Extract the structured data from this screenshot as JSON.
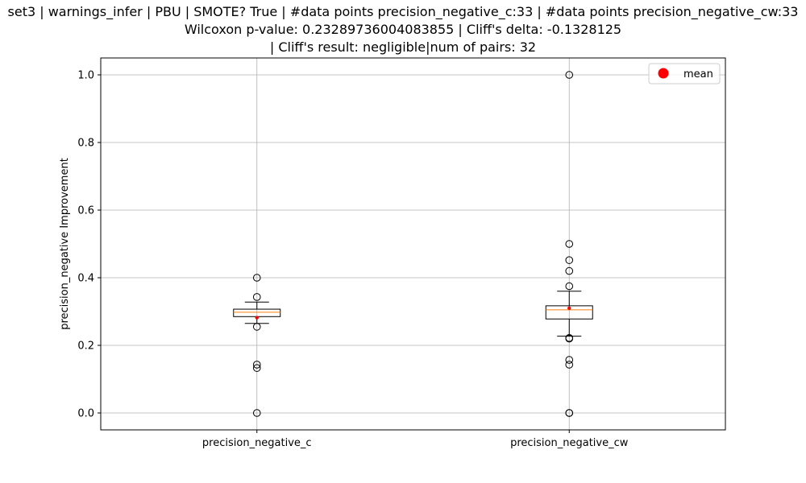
{
  "chart_data": {
    "type": "box",
    "title_lines": [
      "set3 | warnings_infer | PBU | SMOTE? True | #data points precision_negative_c:33 | #data points precision_negative_cw:33",
      "Wilcoxon p-value: 0.23289736004083855 | Cliff's delta: -0.1328125",
      " | Cliff's result: negligible|num of pairs: 32"
    ],
    "xlabel": "",
    "ylabel": "precision_negative Improvement",
    "ylim": [
      -0.05,
      1.05
    ],
    "yticks": [
      0.0,
      0.2,
      0.4,
      0.6,
      0.8,
      1.0
    ],
    "ytick_labels": [
      "0.0",
      "0.2",
      "0.4",
      "0.6",
      "0.8",
      "1.0"
    ],
    "grid": true,
    "legend": {
      "placement": "top-right",
      "entries": [
        {
          "label": "mean",
          "color": "#ff0000",
          "marker": "circle"
        }
      ]
    },
    "categories": [
      "precision_negative_c",
      "precision_negative_cw"
    ],
    "series": [
      {
        "category": "precision_negative_c",
        "whisker_low": 0.265,
        "q1": 0.285,
        "median": 0.298,
        "q3": 0.307,
        "whisker_high": 0.328,
        "mean": 0.282,
        "outliers": [
          0.4,
          0.343,
          0.255,
          0.143,
          0.133,
          0.0
        ]
      },
      {
        "category": "precision_negative_cw",
        "whisker_low": 0.227,
        "q1": 0.278,
        "median": 0.305,
        "q3": 0.317,
        "whisker_high": 0.36,
        "mean": 0.31,
        "outliers": [
          1.0,
          0.5,
          0.452,
          0.42,
          0.375,
          0.222,
          0.22,
          0.157,
          0.143,
          0.0,
          0.0
        ]
      }
    ],
    "colors": {
      "median": "#ff7f0e",
      "mean": "#ff0000",
      "box": "#000000",
      "grid": "#b0b0b0"
    }
  }
}
